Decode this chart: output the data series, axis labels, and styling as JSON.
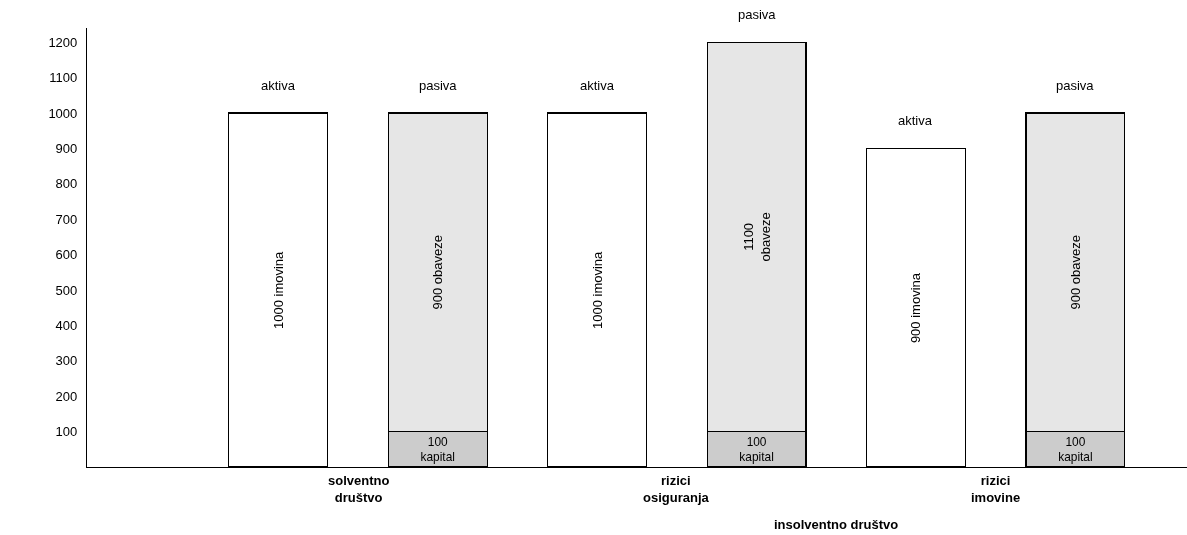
{
  "chart_data": {
    "type": "bar",
    "stacked": true,
    "categories": [
      null,
      null,
      null,
      null,
      null,
      null
    ],
    "series": [
      {
        "color": "#ffffff",
        "values": [
          1000,
          null,
          1000,
          null,
          900,
          null
        ],
        "value_labels": [
          "1000 imovina",
          null,
          "1000 imovina",
          null,
          "900 imovina",
          null
        ]
      },
      {
        "color": "#cccccc",
        "values": [
          null,
          100,
          null,
          100,
          null,
          100
        ],
        "value_labels": [
          null,
          "100\nkapital",
          null,
          "100\nkapital",
          null,
          "100\nkapital"
        ]
      },
      {
        "color": "#e6e6e6",
        "values": [
          null,
          900,
          null,
          1100,
          null,
          900
        ],
        "value_labels": [
          null,
          "900 obaveze",
          null,
          "1100\nobaveze",
          null,
          "900 obaveze"
        ]
      }
    ],
    "annotations": [
      "aktiva",
      "pasiva",
      "aktiva",
      "pasiva",
      "aktiva",
      "pasiva",
      "solventno\ndruštvo",
      "rizici\nosiguranja",
      "rizici\nimovine",
      "insolventno društvo"
    ],
    "ylim": [
      0,
      1240
    ],
    "yticks": [
      100,
      200,
      300,
      400,
      500,
      600,
      700,
      800,
      900,
      1000,
      1100,
      1200
    ],
    "tick_labels": "y"
  }
}
